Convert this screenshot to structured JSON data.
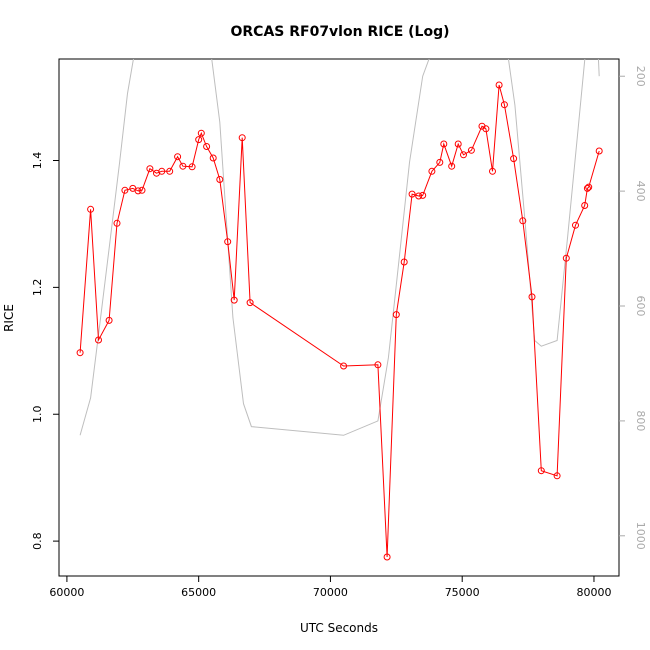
{
  "chart_data": {
    "type": "line",
    "title": "ORCAS RF07vlon RICE (Log)",
    "xlabel": "UTC Seconds",
    "ylabel": "RICE",
    "xlim": [
      59700,
      80950
    ],
    "ylim": [
      0.745,
      1.56
    ],
    "y2lim": [
      1070,
      170
    ],
    "x_ticks": [
      60000,
      65000,
      70000,
      75000,
      80000
    ],
    "x_tick_labels": [
      "60000",
      "65000",
      "70000",
      "75000",
      "80000"
    ],
    "y_ticks": [
      0.8,
      1.0,
      1.2,
      1.4
    ],
    "y_tick_labels": [
      "0.8",
      "1.0",
      "1.2",
      "1.4"
    ],
    "y2_ticks": [
      200,
      400,
      600,
      800,
      1000
    ],
    "y2_tick_labels": [
      "200",
      "400",
      "600",
      "800",
      "1000"
    ],
    "grid": false,
    "colors": {
      "rice": "#ff0000",
      "pressure": "#bebebe",
      "right_axis": "#aaaaaa"
    },
    "series": [
      {
        "axis": "left",
        "style": "line+circles",
        "x": [
          60500,
          60900,
          61200,
          61600,
          61900,
          62200,
          62500,
          62700,
          62850,
          63150,
          63400,
          63600,
          63900,
          64200,
          64400,
          64750,
          65000,
          65100,
          65300,
          65550,
          65800,
          66100,
          66350,
          66650,
          66950,
          70500,
          71800,
          72150,
          72500,
          72800,
          73100,
          73350,
          73500,
          73850,
          74150,
          74300,
          74600,
          74850,
          75050,
          75350,
          75750,
          75900,
          76150,
          76400,
          76600,
          76950,
          77300,
          77650,
          78000,
          78600,
          78950,
          79300,
          79650,
          79750,
          79800,
          80200
        ],
        "y": [
          1.097,
          1.323,
          1.117,
          1.148,
          1.301,
          1.353,
          1.356,
          1.352,
          1.353,
          1.387,
          1.38,
          1.383,
          1.383,
          1.406,
          1.391,
          1.39,
          1.433,
          1.443,
          1.422,
          1.404,
          1.37,
          1.272,
          1.18,
          1.436,
          1.176,
          1.076,
          1.078,
          0.775,
          1.157,
          1.24,
          1.347,
          1.344,
          1.345,
          1.383,
          1.397,
          1.426,
          1.391,
          1.426,
          1.409,
          1.416,
          1.454,
          1.45,
          1.383,
          1.519,
          1.488,
          1.403,
          1.305,
          1.185,
          0.911,
          0.903,
          1.246,
          1.298,
          1.329,
          1.356,
          1.358,
          1.415
        ]
      },
      {
        "axis": "right",
        "style": "line",
        "x": [
          60500,
          60900,
          61200,
          61600,
          62000,
          62300,
          62600,
          64000,
          64400,
          64800,
          65300,
          65800,
          66300,
          66700,
          67000,
          70500,
          71800,
          72200,
          72600,
          73000,
          73500,
          74300,
          75200,
          76300,
          76600,
          77000,
          77400,
          77750,
          78000,
          78600,
          79000,
          79400,
          79800,
          80100,
          80200
        ],
        "y": [
          825,
          760,
          650,
          500,
          350,
          230,
          150,
          100,
          100,
          100,
          100,
          280,
          620,
          770,
          810,
          825,
          800,
          690,
          520,
          350,
          200,
          100,
          100,
          100,
          120,
          250,
          460,
          660,
          670,
          660,
          480,
          290,
          100,
          100,
          200
        ]
      }
    ]
  }
}
